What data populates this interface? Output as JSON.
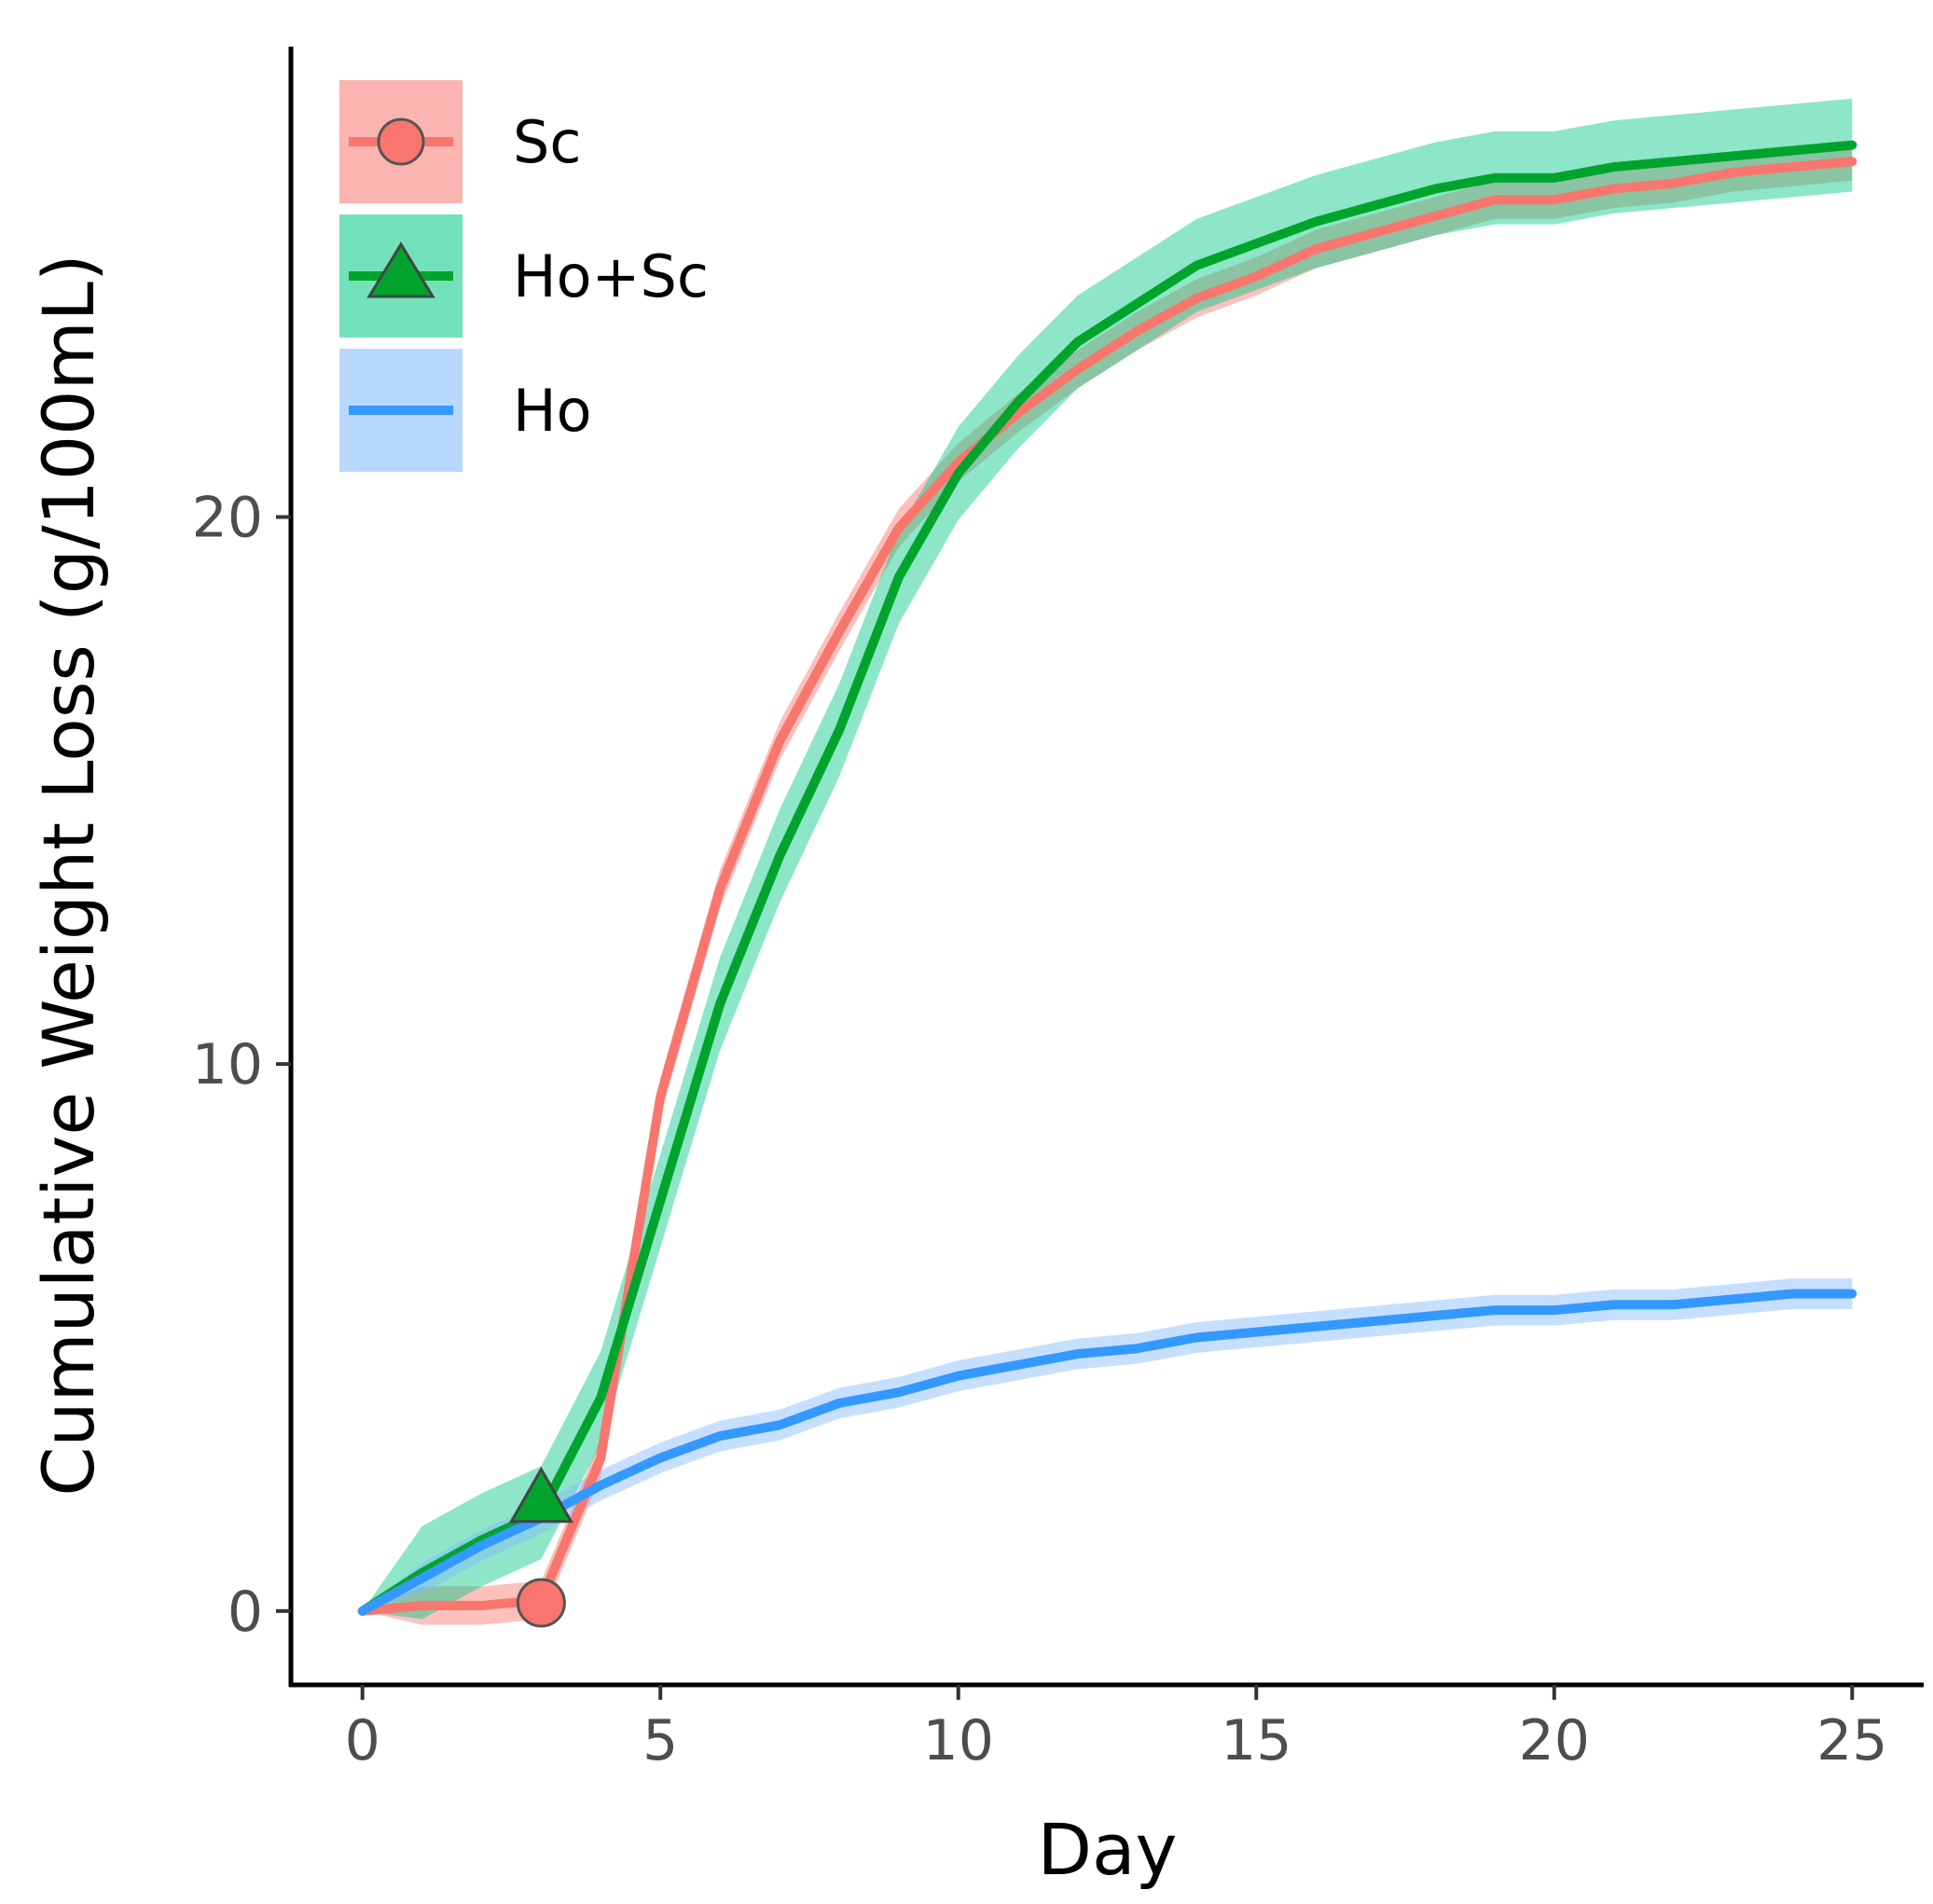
{
  "chart_data": {
    "type": "line",
    "title": "",
    "xlabel": "Day",
    "ylabel": "Cumulative Weight Loss (g/100mL)",
    "xlim": [
      -1.2,
      26.2
    ],
    "ylim": [
      -1.35,
      28.6
    ],
    "xticks": [
      0,
      5,
      10,
      15,
      20,
      25
    ],
    "yticks": [
      0,
      10,
      20
    ],
    "legend_position": "top-left",
    "series": [
      {
        "name": "Sc",
        "color": "#F8766D",
        "band_color": "#F8766D",
        "marker": "circle",
        "marker_day": 3,
        "marker_value": 0.15,
        "x": [
          0,
          1,
          2,
          3,
          4,
          5,
          6,
          7,
          8,
          9,
          10,
          11,
          12,
          13,
          14,
          15,
          16,
          17,
          18,
          19,
          20,
          21,
          22,
          23,
          24,
          25
        ],
        "y": [
          0,
          0.1,
          0.1,
          0.2,
          2.8,
          9.4,
          13.2,
          15.9,
          17.9,
          19.8,
          21.0,
          21.9,
          22.7,
          23.4,
          24.0,
          24.4,
          24.9,
          25.2,
          25.5,
          25.8,
          25.8,
          26.0,
          26.1,
          26.3,
          26.4,
          26.5
        ],
        "band": 0.35
      },
      {
        "name": "Ho+Sc",
        "color": "#00A42D",
        "band_color": "#00C882",
        "marker": "triangle",
        "marker_day": 3,
        "marker_value": 2.0,
        "x": [
          0,
          1,
          2,
          3,
          4,
          5,
          6,
          7,
          8,
          9,
          10,
          11,
          12,
          13,
          14,
          15,
          16,
          17,
          18,
          19,
          20,
          21,
          22,
          23,
          24,
          25
        ],
        "y": [
          0,
          0.7,
          1.3,
          1.8,
          3.9,
          7.5,
          11.1,
          13.8,
          16.1,
          18.9,
          20.8,
          22.1,
          23.2,
          23.9,
          24.6,
          25.0,
          25.4,
          25.7,
          26.0,
          26.2,
          26.2,
          26.4,
          26.5,
          26.6,
          26.7,
          26.8
        ],
        "band": 0.85
      },
      {
        "name": "Ho",
        "color": "#3399FF",
        "band_color": "#80B8FF",
        "marker": "none",
        "x": [
          0,
          1,
          2,
          3,
          4,
          5,
          6,
          7,
          8,
          9,
          10,
          11,
          12,
          13,
          14,
          15,
          16,
          17,
          18,
          19,
          20,
          21,
          22,
          23,
          24,
          25
        ],
        "y": [
          0,
          0.6,
          1.2,
          1.7,
          2.3,
          2.8,
          3.2,
          3.4,
          3.8,
          4.0,
          4.3,
          4.5,
          4.7,
          4.8,
          5.0,
          5.1,
          5.2,
          5.3,
          5.4,
          5.5,
          5.5,
          5.6,
          5.6,
          5.7,
          5.8,
          5.8
        ],
        "band": 0.28
      }
    ]
  }
}
